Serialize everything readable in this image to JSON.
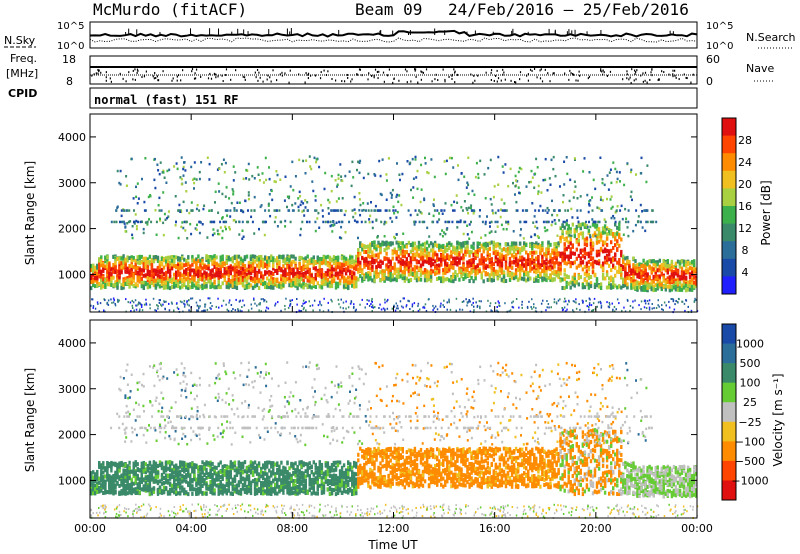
{
  "header": {
    "station": "McMurdo (fitACF)",
    "beam": "Beam 09",
    "date_range": "24/Feb/2016 – 25/Feb/2016"
  },
  "aux_panels": {
    "nsky": {
      "label": "N.Sky",
      "right_label": "N.Search",
      "left_ticks": [
        "10^5",
        "10^0"
      ],
      "right_ticks": [
        "10^5",
        "10^0"
      ]
    },
    "freq": {
      "label_line1": "Freq.",
      "label_line2": "[MHz]",
      "right_label": "Nave",
      "left_ticks": [
        "18",
        "8"
      ],
      "right_ticks": [
        "60",
        "0"
      ]
    },
    "cpid": {
      "label": "CPID",
      "text": "normal (fast) 151 RF"
    }
  },
  "colors": {
    "power_scale": [
      "#2020ff",
      "#1a4aa8",
      "#2c6e9a",
      "#3a8a6a",
      "#3cb04a",
      "#a8d040",
      "#f0c020",
      "#ff8c00",
      "#ff4500",
      "#e01010"
    ],
    "velocity_scale": [
      "#e01010",
      "#ff4500",
      "#ff8c00",
      "#f0c020",
      "#c0c0c0",
      "#66cc33",
      "#3a8a6a",
      "#2c6e9a",
      "#1a4aa8"
    ]
  },
  "chart_data": [
    {
      "type": "heatmap",
      "ylabel": "Slant Range [km]",
      "ylim": [
        180,
        4500
      ],
      "y_ticks": [
        "1000",
        "2000",
        "3000",
        "4000"
      ],
      "x_ticks": [
        "00:00",
        "04:00",
        "08:00",
        "12:00",
        "16:00",
        "20:00",
        "00:00"
      ],
      "colorbar_label": "Power [dB]",
      "colorbar_ticks": [
        "28",
        "24",
        "20",
        "16",
        "12",
        "8",
        "4"
      ]
    },
    {
      "type": "heatmap",
      "ylabel": "Slant Range [km]",
      "ylim": [
        180,
        4500
      ],
      "y_ticks": [
        "1000",
        "2000",
        "3000",
        "4000"
      ],
      "x_ticks": [
        "00:00",
        "04:00",
        "08:00",
        "12:00",
        "16:00",
        "20:00",
        "00:00"
      ],
      "xlabel": "Time UT",
      "colorbar_label": "Velocity [m s⁻¹]",
      "colorbar_ticks": [
        "1000",
        "500",
        "100",
        "25",
        "−25",
        "−100",
        "−500",
        "−1000"
      ]
    }
  ]
}
